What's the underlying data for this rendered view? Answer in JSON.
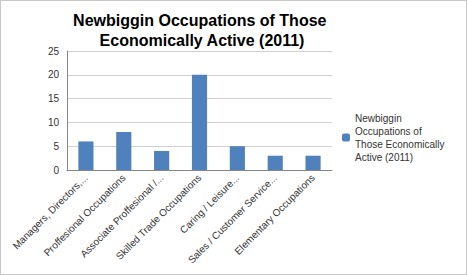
{
  "chart_data": {
    "type": "bar",
    "title": "Newbiggin Occupations of Those Economically Active (2011)",
    "categories": [
      "Managers, Directors,...",
      "Proffesional Occupations",
      "Associate Proffesional /...",
      "Skilled Trade Occupations",
      "Caring / Leisure...",
      "Sales / Customer Service...",
      "Elementary Occupations"
    ],
    "series": [
      {
        "name": "Newbiggin Occupations of Those Economically Active (2011)",
        "color": "#4f81bd",
        "values": [
          6,
          8,
          4,
          20,
          5,
          3,
          3
        ]
      }
    ],
    "ylim": [
      0,
      25
    ],
    "yticks": [
      0,
      5,
      10,
      15,
      20,
      25
    ],
    "grid": true,
    "legend": "right"
  }
}
